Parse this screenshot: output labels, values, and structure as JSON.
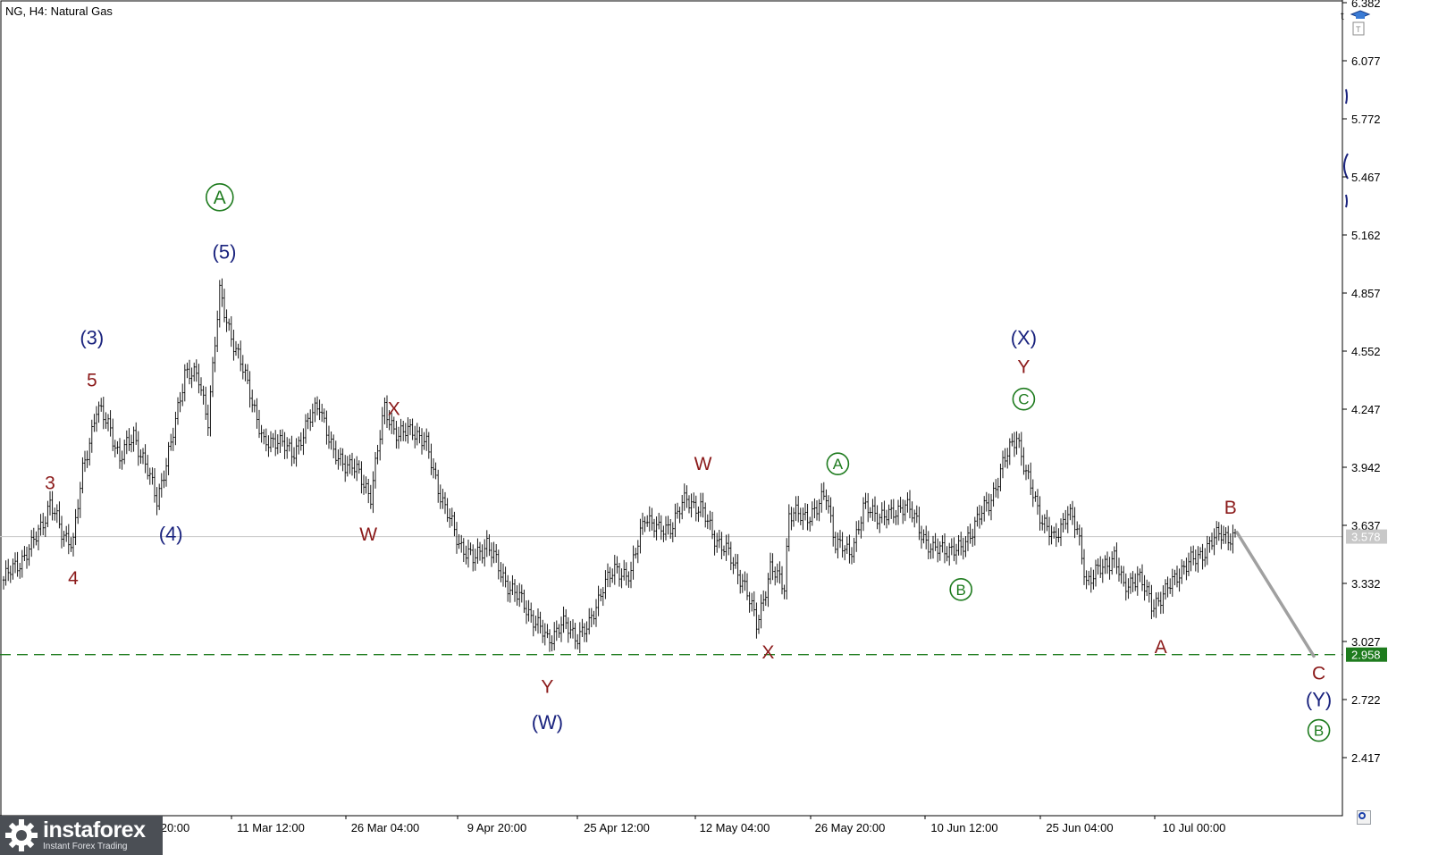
{
  "header": {
    "symbol_title": "NG, H4:  Natural Gas"
  },
  "logo": {
    "name": "instaforex",
    "tagline": "Instant Forex Trading"
  },
  "colors": {
    "candles": "#000000",
    "grid_line": "#c8c8c8",
    "support_line": "#1e7b1e",
    "support_badge_bg": "#1e7b1e",
    "current_badge_bg": "#c8c8c8",
    "projection": "#a0a0a0",
    "wave_red": "#8b1a1a",
    "wave_navy": "#1a237e",
    "wave_green": "#1e7b1e"
  },
  "chart_data": {
    "type": "candlestick",
    "title": "NG, H4:  Natural Gas",
    "y_ticks": [
      "6.382",
      "6.077",
      "5.772",
      "5.467",
      "5.162",
      "4.857",
      "4.552",
      "4.247",
      "3.942",
      "3.637",
      "3.332",
      "3.027",
      "2.722",
      "2.417"
    ],
    "x_ticks": [
      "20:00",
      "11 Mar 12:00",
      "26 Mar 04:00",
      "9 Apr 20:00",
      "25 Apr 12:00",
      "12 May 04:00",
      "26 May 20:00",
      "10 Jun 12:00",
      "25 Jun 04:00",
      "10 Jul 00:00"
    ],
    "ylim": [
      2.2,
      6.38
    ],
    "current_price": {
      "label": "3.578",
      "value": 3.578
    },
    "support_level": {
      "label": "2.958",
      "value": 2.958,
      "style": "dashed"
    },
    "price_path": [
      {
        "i": 0,
        "p": 3.35
      },
      {
        "i": 12,
        "p": 3.52
      },
      {
        "i": 20,
        "p": 3.75
      },
      {
        "i": 25,
        "p": 3.6
      },
      {
        "i": 30,
        "p": 3.55
      },
      {
        "i": 34,
        "p": 3.92
      },
      {
        "i": 40,
        "p": 4.25
      },
      {
        "i": 46,
        "p": 4.15
      },
      {
        "i": 50,
        "p": 3.98
      },
      {
        "i": 56,
        "p": 4.12
      },
      {
        "i": 60,
        "p": 3.98
      },
      {
        "i": 66,
        "p": 3.78
      },
      {
        "i": 72,
        "p": 4.05
      },
      {
        "i": 78,
        "p": 4.45
      },
      {
        "i": 84,
        "p": 4.4
      },
      {
        "i": 88,
        "p": 4.2
      },
      {
        "i": 93,
        "p": 4.85
      },
      {
        "i": 100,
        "p": 4.55
      },
      {
        "i": 106,
        "p": 4.35
      },
      {
        "i": 112,
        "p": 4.05
      },
      {
        "i": 118,
        "p": 4.1
      },
      {
        "i": 124,
        "p": 4.0
      },
      {
        "i": 130,
        "p": 4.15
      },
      {
        "i": 136,
        "p": 4.28
      },
      {
        "i": 142,
        "p": 4.0
      },
      {
        "i": 150,
        "p": 3.95
      },
      {
        "i": 158,
        "p": 3.8
      },
      {
        "i": 164,
        "p": 4.25
      },
      {
        "i": 170,
        "p": 4.1
      },
      {
        "i": 176,
        "p": 4.15
      },
      {
        "i": 182,
        "p": 4.05
      },
      {
        "i": 190,
        "p": 3.72
      },
      {
        "i": 196,
        "p": 3.55
      },
      {
        "i": 202,
        "p": 3.45
      },
      {
        "i": 208,
        "p": 3.55
      },
      {
        "i": 214,
        "p": 3.38
      },
      {
        "i": 222,
        "p": 3.25
      },
      {
        "i": 228,
        "p": 3.15
      },
      {
        "i": 234,
        "p": 3.03
      },
      {
        "i": 240,
        "p": 3.12
      },
      {
        "i": 246,
        "p": 3.06
      },
      {
        "i": 252,
        "p": 3.1
      },
      {
        "i": 258,
        "p": 3.33
      },
      {
        "i": 264,
        "p": 3.4
      },
      {
        "i": 270,
        "p": 3.38
      },
      {
        "i": 276,
        "p": 3.7
      },
      {
        "i": 282,
        "p": 3.6
      },
      {
        "i": 288,
        "p": 3.65
      },
      {
        "i": 294,
        "p": 3.78
      },
      {
        "i": 300,
        "p": 3.72
      },
      {
        "i": 306,
        "p": 3.58
      },
      {
        "i": 312,
        "p": 3.48
      },
      {
        "i": 318,
        "p": 3.35
      },
      {
        "i": 324,
        "p": 3.12
      },
      {
        "i": 330,
        "p": 3.4
      },
      {
        "i": 336,
        "p": 3.33
      },
      {
        "i": 338,
        "p": 3.7
      },
      {
        "i": 344,
        "p": 3.68
      },
      {
        "i": 350,
        "p": 3.72
      },
      {
        "i": 354,
        "p": 3.8
      },
      {
        "i": 358,
        "p": 3.55
      },
      {
        "i": 364,
        "p": 3.48
      },
      {
        "i": 370,
        "p": 3.72
      },
      {
        "i": 376,
        "p": 3.7
      },
      {
        "i": 382,
        "p": 3.68
      },
      {
        "i": 388,
        "p": 3.76
      },
      {
        "i": 394,
        "p": 3.62
      },
      {
        "i": 400,
        "p": 3.5
      },
      {
        "i": 406,
        "p": 3.52
      },
      {
        "i": 412,
        "p": 3.5
      },
      {
        "i": 418,
        "p": 3.65
      },
      {
        "i": 424,
        "p": 3.75
      },
      {
        "i": 430,
        "p": 3.95
      },
      {
        "i": 436,
        "p": 4.12
      },
      {
        "i": 440,
        "p": 3.9
      },
      {
        "i": 446,
        "p": 3.7
      },
      {
        "i": 452,
        "p": 3.55
      },
      {
        "i": 458,
        "p": 3.72
      },
      {
        "i": 462,
        "p": 3.6
      },
      {
        "i": 466,
        "p": 3.35
      },
      {
        "i": 472,
        "p": 3.4
      },
      {
        "i": 478,
        "p": 3.48
      },
      {
        "i": 482,
        "p": 3.3
      },
      {
        "i": 488,
        "p": 3.38
      },
      {
        "i": 494,
        "p": 3.22
      },
      {
        "i": 500,
        "p": 3.28
      },
      {
        "i": 506,
        "p": 3.4
      },
      {
        "i": 512,
        "p": 3.45
      },
      {
        "i": 518,
        "p": 3.52
      },
      {
        "i": 524,
        "p": 3.6
      },
      {
        "i": 530,
        "p": 3.56
      }
    ],
    "projection": {
      "from_index": 530,
      "from_price": 3.6,
      "to_price": 2.95
    },
    "wave_labels": [
      {
        "text": "3",
        "i": 20,
        "p": 3.86,
        "color": "red",
        "circled": false
      },
      {
        "text": "4",
        "i": 30,
        "p": 3.36,
        "color": "red",
        "circled": false
      },
      {
        "text": "5",
        "i": 38,
        "p": 4.4,
        "color": "red",
        "circled": false
      },
      {
        "text": "(3)",
        "i": 38,
        "p": 4.62,
        "color": "navy",
        "circled": false
      },
      {
        "text": "(4)",
        "i": 72,
        "p": 3.59,
        "color": "navy",
        "circled": false
      },
      {
        "text": "A",
        "i": 93,
        "p": 5.36,
        "color": "green",
        "circled": true
      },
      {
        "text": "(5)",
        "i": 95,
        "p": 5.07,
        "color": "navy",
        "circled": false
      },
      {
        "text": "X",
        "i": 168,
        "p": 4.25,
        "color": "red",
        "circled": false
      },
      {
        "text": "W",
        "i": 157,
        "p": 3.59,
        "color": "red",
        "circled": false
      },
      {
        "text": "Y",
        "i": 234,
        "p": 2.79,
        "color": "red",
        "circled": false
      },
      {
        "text": "(W)",
        "i": 234,
        "p": 2.6,
        "color": "navy",
        "circled": false
      },
      {
        "text": "W",
        "i": 301,
        "p": 3.96,
        "color": "red",
        "circled": false
      },
      {
        "text": "X",
        "i": 329,
        "p": 2.97,
        "color": "red",
        "circled": false
      },
      {
        "text": "A",
        "i": 359,
        "p": 3.96,
        "color": "green",
        "circled": true
      },
      {
        "text": "B",
        "i": 412,
        "p": 3.3,
        "color": "green",
        "circled": true
      },
      {
        "text": "(X)",
        "i": 439,
        "p": 4.62,
        "color": "navy",
        "circled": false
      },
      {
        "text": "Y",
        "i": 439,
        "p": 4.47,
        "color": "red",
        "circled": false
      },
      {
        "text": "C",
        "i": 439,
        "p": 4.3,
        "color": "green",
        "circled": true
      },
      {
        "text": "A",
        "i": 498,
        "p": 3.0,
        "color": "red",
        "circled": false
      },
      {
        "text": "B",
        "i": 528,
        "p": 3.73,
        "color": "red",
        "circled": false
      },
      {
        "text": "C",
        "i": 566,
        "p": 2.86,
        "color": "red",
        "circled": false
      },
      {
        "text": "(Y)",
        "i": 566,
        "p": 2.72,
        "color": "navy",
        "circled": false
      },
      {
        "text": "B",
        "i": 566,
        "p": 2.56,
        "color": "green",
        "circled": true
      }
    ]
  }
}
